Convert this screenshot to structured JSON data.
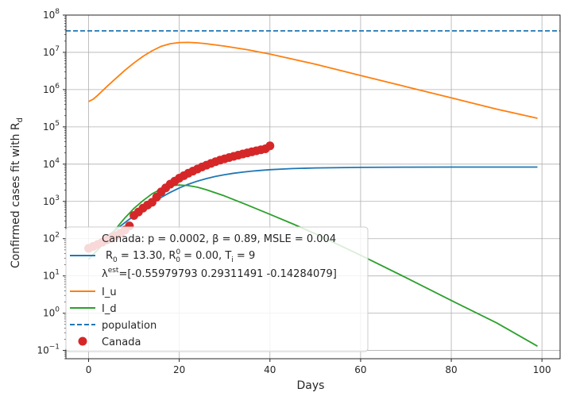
{
  "chart_data": {
    "type": "line",
    "xlabel": "Days",
    "ylabel": {
      "main": "Confirmed cases fit with R",
      "sub": "d"
    },
    "xlim": [
      -5,
      104
    ],
    "ylim": [
      0.06,
      100000000
    ],
    "yscale": "log",
    "grid": true,
    "legend_placement": "lower-left",
    "x_ticks": [
      {
        "value": 0,
        "label": "0"
      },
      {
        "value": 20,
        "label": "20"
      },
      {
        "value": 40,
        "label": "40"
      },
      {
        "value": 60,
        "label": "60"
      },
      {
        "value": 80,
        "label": "80"
      },
      {
        "value": 100,
        "label": "100"
      }
    ],
    "y_ticks": [
      {
        "value": 0.1,
        "base": "10",
        "exp": "−1"
      },
      {
        "value": 1,
        "base": "10",
        "exp": "0"
      },
      {
        "value": 10,
        "base": "10",
        "exp": "1"
      },
      {
        "value": 100,
        "base": "10",
        "exp": "2"
      },
      {
        "value": 1000,
        "base": "10",
        "exp": "3"
      },
      {
        "value": 10000,
        "base": "10",
        "exp": "4"
      },
      {
        "value": 100000,
        "base": "10",
        "exp": "5"
      },
      {
        "value": 1000000,
        "base": "10",
        "exp": "6"
      },
      {
        "value": 10000000,
        "base": "10",
        "exp": "7"
      },
      {
        "value": 100000000,
        "base": "10",
        "exp": "8"
      }
    ],
    "series": [
      {
        "id": "rd",
        "color": "#1f77b4",
        "style": "line",
        "x": [
          0,
          2,
          4,
          6,
          8,
          10,
          12,
          14,
          16,
          18,
          20,
          22,
          24,
          26,
          28,
          30,
          32,
          34,
          36,
          38,
          40,
          45,
          50,
          60,
          70,
          80,
          90,
          99
        ],
        "y": [
          50,
          75,
          115,
          175,
          270,
          410,
          620,
          900,
          1280,
          1750,
          2300,
          2900,
          3500,
          4100,
          4700,
          5200,
          5700,
          6100,
          6500,
          6800,
          7100,
          7600,
          7900,
          8200,
          8300,
          8350,
          8350,
          8350
        ]
      },
      {
        "id": "iu",
        "name": "I_u",
        "color": "#ff7f0e",
        "style": "line",
        "x": [
          0,
          1,
          2,
          4,
          6,
          8,
          10,
          12,
          14,
          16,
          18,
          20,
          22,
          24,
          26,
          30,
          35,
          40,
          50,
          60,
          70,
          80,
          90,
          99
        ],
        "y": [
          480000,
          550000,
          700000,
          1200000,
          2000000,
          3300000,
          5200000,
          7800000,
          11000000,
          14500000,
          17000000,
          18300000,
          18500000,
          18000000,
          17000000,
          14700000,
          11800000,
          9000000,
          4800000,
          2400000,
          1200000,
          600000,
          300000,
          170000
        ]
      },
      {
        "id": "id",
        "name": "I_d",
        "color": "#2ca02c",
        "style": "line",
        "x": [
          0,
          2,
          4,
          6,
          8,
          10,
          12,
          14,
          16,
          18,
          20,
          22,
          24,
          26,
          30,
          35,
          40,
          45,
          50,
          60,
          70,
          80,
          90,
          99
        ],
        "y": [
          28,
          50,
          95,
          185,
          360,
          650,
          1050,
          1600,
          2150,
          2600,
          2750,
          2650,
          2400,
          2050,
          1400,
          800,
          450,
          250,
          135,
          36,
          9,
          2.2,
          0.55,
          0.13
        ]
      },
      {
        "id": "population",
        "name": "population",
        "color": "#1f77b4",
        "style": "dashed",
        "x": [
          -5,
          104
        ],
        "y": [
          37600000,
          37600000
        ]
      },
      {
        "id": "canada",
        "name": "Canada",
        "color": "#d62728",
        "style": "scatter",
        "x": [
          0,
          1,
          2,
          3,
          4,
          5,
          6,
          7,
          8,
          9,
          10,
          11,
          12,
          13,
          14,
          15,
          16,
          17,
          18,
          19,
          20,
          21,
          22,
          23,
          24,
          25,
          26,
          27,
          28,
          29,
          30,
          31,
          32,
          33,
          34,
          35,
          36,
          37,
          38,
          39,
          40
        ],
        "y": [
          55,
          62,
          70,
          80,
          92,
          104,
          120,
          140,
          170,
          220,
          420,
          520,
          660,
          800,
          950,
          1300,
          1800,
          2300,
          2900,
          3500,
          4200,
          4900,
          5700,
          6500,
          7400,
          8400,
          9400,
          10500,
          11600,
          12800,
          13900,
          15000,
          16200,
          17400,
          18700,
          20000,
          21400,
          22800,
          24300,
          25800,
          31000
        ]
      }
    ],
    "legend": {
      "title_line": "Canada: p = 0.0002,  β =  0.89, MSLE = 0.004",
      "rd_line": {
        "r_main": "R",
        "r_sub": "0",
        "r_val": " = 13.30, ",
        "r2_main": "R",
        "r2_sup": "0",
        "r2_sub": "0",
        "r2_val": " = 0.00, ",
        "t_main": "T",
        "t_sub": "i",
        "t_val": " = 9"
      },
      "lambda_line": {
        "sym": "λ",
        "sup": "est",
        "val": "=[-0.55979793  0.29311491 -0.14284079]"
      },
      "iu": "I_u",
      "id": "I_d",
      "population": "population",
      "canada": "Canada"
    }
  }
}
